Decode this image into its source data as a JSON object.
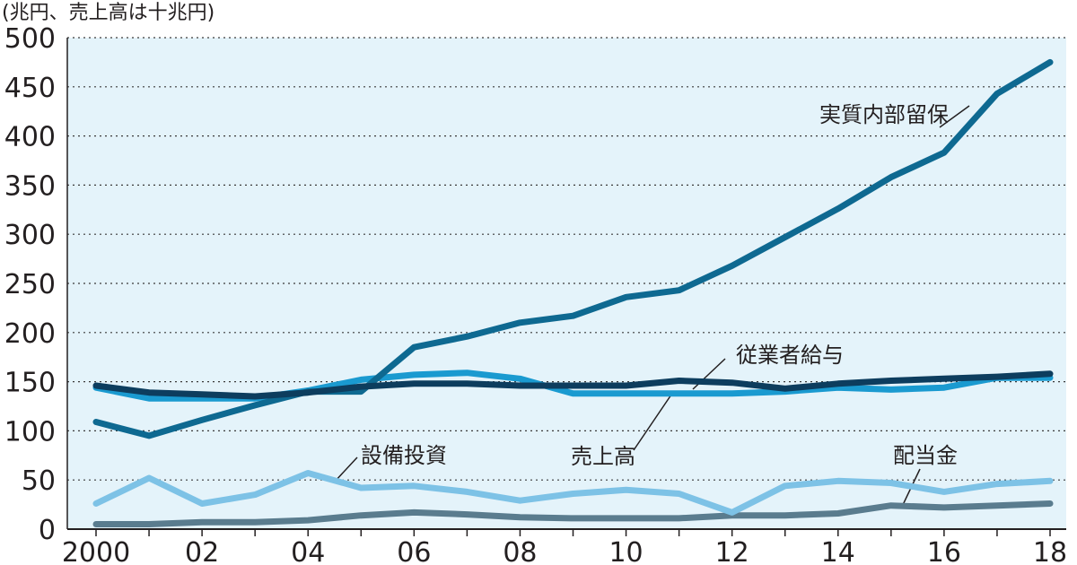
{
  "chart_data": {
    "type": "line",
    "unit_label": "(兆円、売上高は十兆円)",
    "x": [
      2000,
      2001,
      2002,
      2003,
      2004,
      2005,
      2006,
      2007,
      2008,
      2009,
      2010,
      2011,
      2012,
      2013,
      2014,
      2015,
      2016,
      2017,
      2018
    ],
    "x_tick_values": [
      2000,
      2002,
      2004,
      2006,
      2008,
      2010,
      2012,
      2014,
      2016,
      2018
    ],
    "x_tick_labels": [
      "2000",
      "02",
      "04",
      "06",
      "08",
      "10",
      "12",
      "14",
      "16",
      "18"
    ],
    "ylim": [
      0,
      500
    ],
    "y_ticks": [
      0,
      50,
      100,
      150,
      200,
      250,
      300,
      350,
      400,
      450,
      500
    ],
    "grid": true,
    "plot_background": "#e4f3fa",
    "series": [
      {
        "name": "実質内部留保",
        "color": "#0e6991",
        "width": 7,
        "values": [
          109,
          95,
          111,
          126,
          140,
          140,
          185,
          196,
          210,
          217,
          236,
          243,
          268,
          297,
          326,
          358,
          383,
          443,
          475
        ]
      },
      {
        "name": "売上高",
        "color": "#1a9ad0",
        "width": 7,
        "values": [
          144,
          133,
          133,
          133,
          141,
          152,
          157,
          159,
          153,
          138,
          138,
          138,
          138,
          140,
          144,
          142,
          144,
          154,
          154
        ]
      },
      {
        "name": "従業者給与",
        "color": "#0d3d5e",
        "width": 7,
        "values": [
          146,
          139,
          137,
          135,
          139,
          145,
          148,
          148,
          146,
          146,
          146,
          151,
          149,
          143,
          148,
          151,
          153,
          155,
          158
        ]
      },
      {
        "name": "設備投資",
        "color": "#7dc2e6",
        "width": 7,
        "values": [
          26,
          52,
          26,
          35,
          57,
          42,
          44,
          38,
          29,
          36,
          40,
          36,
          17,
          44,
          49,
          47,
          38,
          46,
          49
        ]
      },
      {
        "name": "配当金",
        "color": "#5a7c8e",
        "width": 7,
        "values": [
          5,
          5,
          7,
          7,
          9,
          14,
          17,
          15,
          12,
          11,
          11,
          11,
          14,
          14,
          16,
          24,
          22,
          24,
          26
        ]
      }
    ],
    "annotations": [
      {
        "text": "実質内部留保",
        "series": "実質内部留保"
      },
      {
        "text": "従業者給与",
        "series": "従業者給与"
      },
      {
        "text": "売上高",
        "series": "売上高"
      },
      {
        "text": "設備投資",
        "series": "設備投資"
      },
      {
        "text": "配当金",
        "series": "配当金"
      }
    ]
  }
}
